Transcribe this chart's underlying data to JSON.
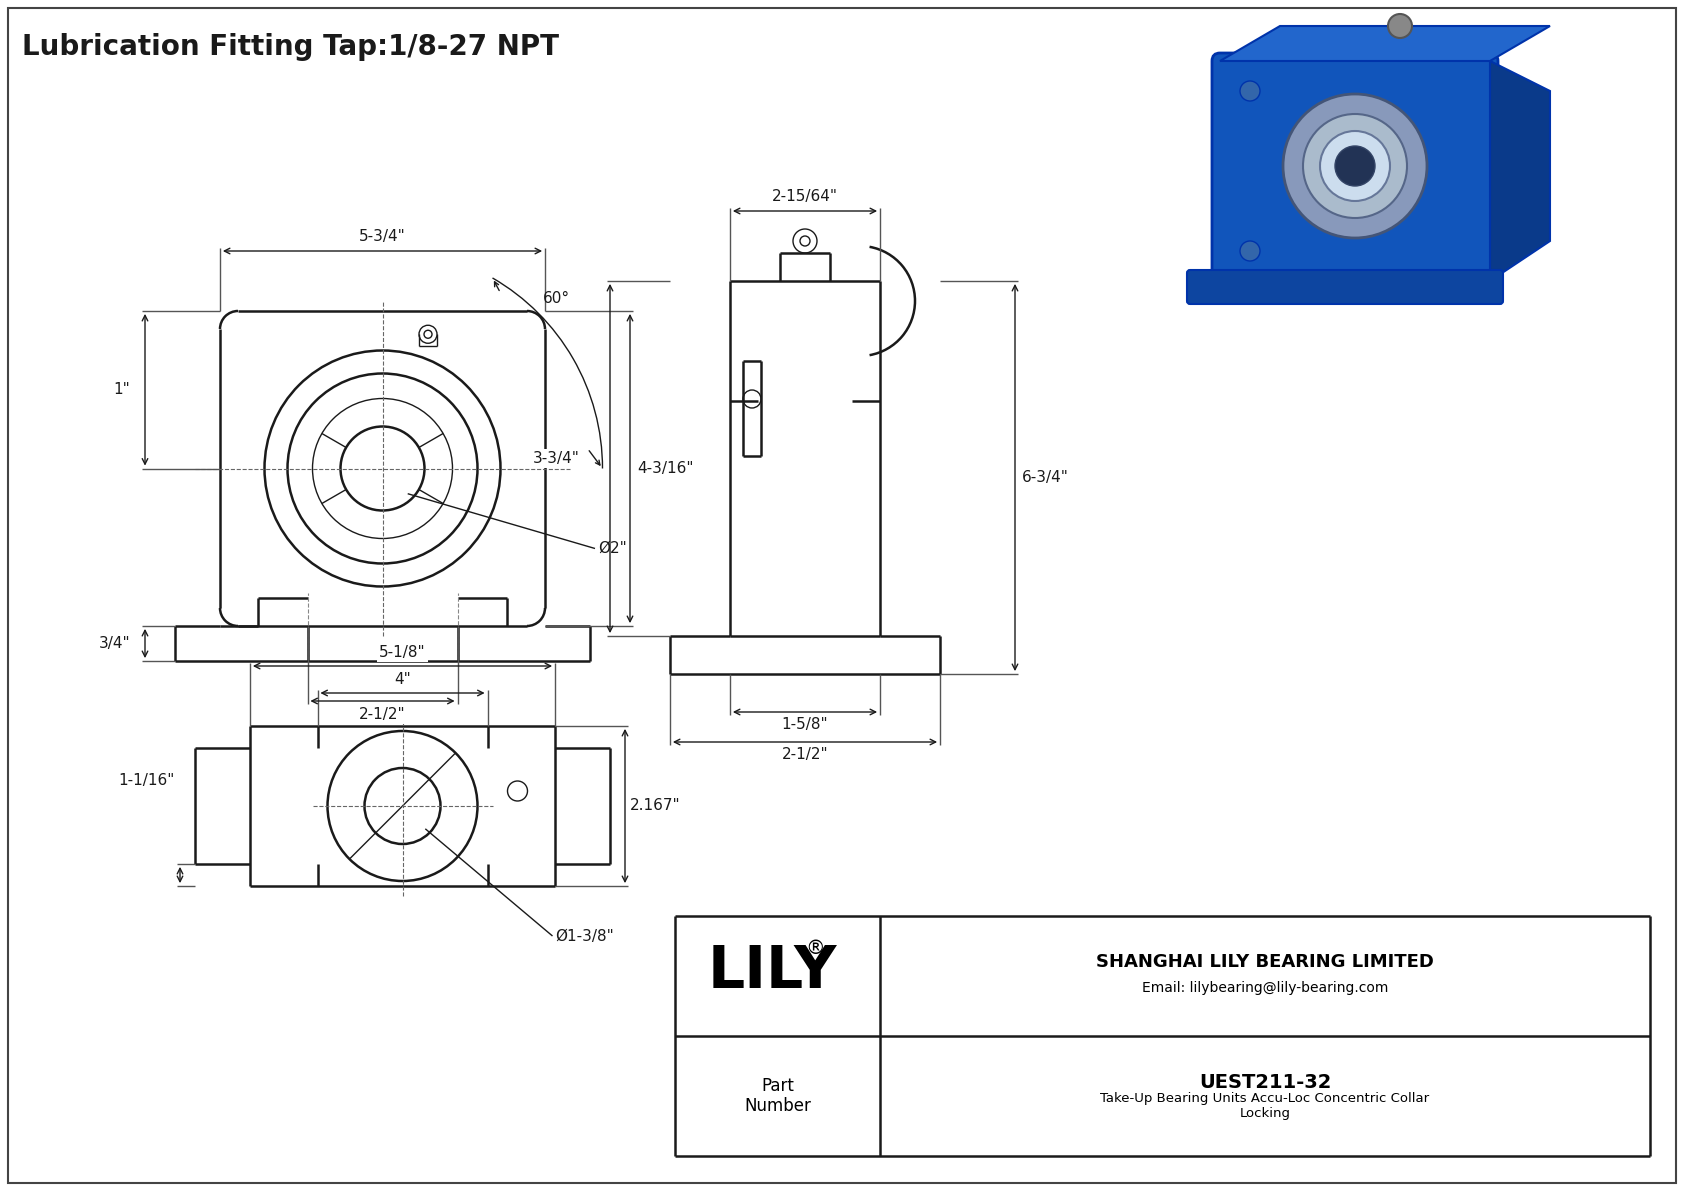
{
  "title": "Lubrication Fitting Tap:1/8-27 NPT",
  "title_fontsize": 20,
  "bg_color": "#ffffff",
  "line_color": "#1a1a1a",
  "fig_width": 16.84,
  "fig_height": 11.91,
  "company": "SHANGHAI LILY BEARING LIMITED",
  "email": "Email: lilybearing@lily-bearing.com",
  "part_number_label": "Part\nNumber",
  "part_number": "UEST211-32",
  "part_desc": "Take-Up Bearing Units Accu-Loc Concentric Collar\nLocking",
  "dims_front": {
    "overall_width": "5-3/4\"",
    "height": "4-3/16\"",
    "slot_width": "2-1/2\"",
    "left_offset": "1\"",
    "bottom_height": "3/4\"",
    "bore": "Ø2\"",
    "angle": "60°"
  },
  "dims_bottom": {
    "overall_width": "5-1/8\"",
    "slot_width": "4\"",
    "height": "2.167\"",
    "left_offset": "1-1/16\"",
    "bore": "Ø1-3/8\""
  },
  "dims_side": {
    "top_width": "2-15/64\"",
    "height": "6-3/4\"",
    "mid_height": "3-3/4\"",
    "base_width1": "1-5/8\"",
    "base_width2": "2-1/2\""
  }
}
